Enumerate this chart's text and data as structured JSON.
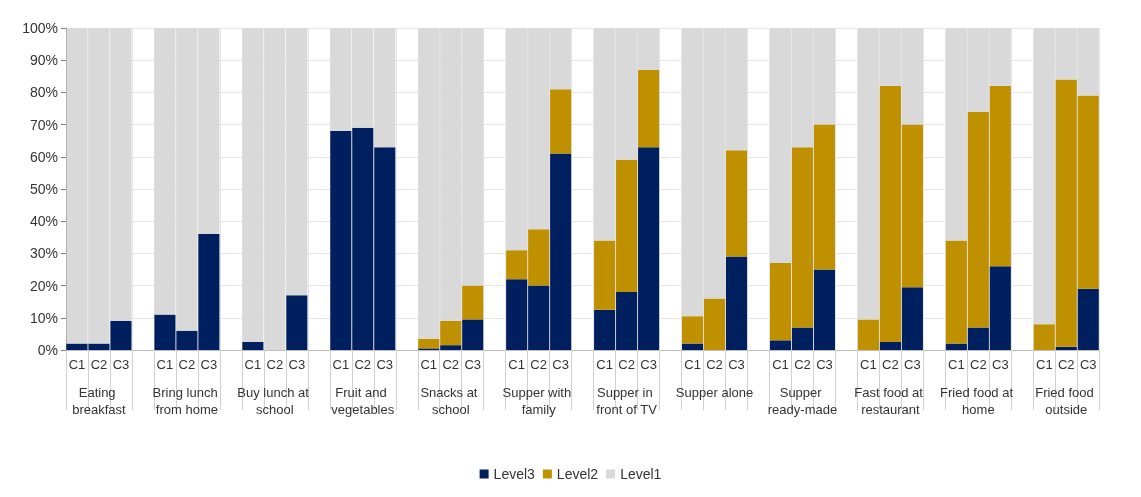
{
  "chart_data": {
    "type": "bar",
    "stacked": true,
    "categories": [
      "C1",
      "C2",
      "C3",
      "C1",
      "C2",
      "C3",
      "C1",
      "C2",
      "C3",
      "C1",
      "C2",
      "C3",
      "C1",
      "C2",
      "C3",
      "C1",
      "C2",
      "C3",
      "C1",
      "C2",
      "C3",
      "C1",
      "C2",
      "C3",
      "C1",
      "C2",
      "C3",
      "C1",
      "C2",
      "C3",
      "C1",
      "C2",
      "C3",
      "C1",
      "C2",
      "C3"
    ],
    "annotations": [
      "Eating breakfast",
      "Bring lunch from home",
      "Buy lunch at school",
      "Fruit and vegetables",
      "Snacks at school",
      "Supper with family",
      "Supper in front of TV",
      "Supper alone",
      "Supper ready-made",
      "Fast food at restaurant",
      "Fried food at home",
      "Fried food outside"
    ],
    "series": [
      {
        "name": "Level3",
        "color": "#001f5f",
        "values": [
          2,
          2,
          9,
          11,
          6,
          36,
          2.5,
          0,
          17,
          68,
          69,
          63,
          0.5,
          1.5,
          9.5,
          22,
          20,
          61,
          12.5,
          18,
          63,
          2,
          0,
          29,
          3,
          7,
          25,
          0,
          2.5,
          19.5,
          2,
          7,
          26,
          0,
          1,
          19
        ]
      },
      {
        "name": "Level2",
        "color": "#bf9000",
        "values": [
          0,
          0,
          0,
          0,
          0,
          0,
          0,
          0,
          0,
          0,
          0,
          0,
          3,
          7.5,
          10.5,
          9,
          17.5,
          20,
          21.5,
          41,
          24,
          8.5,
          16,
          33,
          24,
          56,
          45,
          9.5,
          79.5,
          50.5,
          32,
          67,
          56,
          8,
          83,
          60
        ]
      },
      {
        "name": "Level1",
        "color": "#d9d9d9",
        "values": [
          98,
          98,
          91,
          89,
          94,
          64,
          97.5,
          100,
          83,
          32,
          31,
          37,
          96.5,
          91,
          80,
          69,
          62.5,
          19,
          66,
          41,
          13,
          89.5,
          84,
          38,
          73,
          37,
          30,
          90.5,
          18,
          30,
          66,
          26,
          18,
          92,
          16,
          21
        ]
      }
    ],
    "ylim": [
      0,
      100
    ],
    "yticks": [
      {
        "value": 0,
        "label": "0%"
      },
      {
        "value": 10,
        "label": "10%"
      },
      {
        "value": 20,
        "label": "20%"
      },
      {
        "value": 30,
        "label": "30%"
      },
      {
        "value": 40,
        "label": "40%"
      },
      {
        "value": 50,
        "label": "50%"
      },
      {
        "value": 60,
        "label": "60%"
      },
      {
        "value": 70,
        "label": "70%"
      },
      {
        "value": 80,
        "label": "80%"
      },
      {
        "value": 90,
        "label": "90%"
      },
      {
        "value": 100,
        "label": "100%"
      }
    ],
    "grid": true,
    "legend": "bottom"
  }
}
